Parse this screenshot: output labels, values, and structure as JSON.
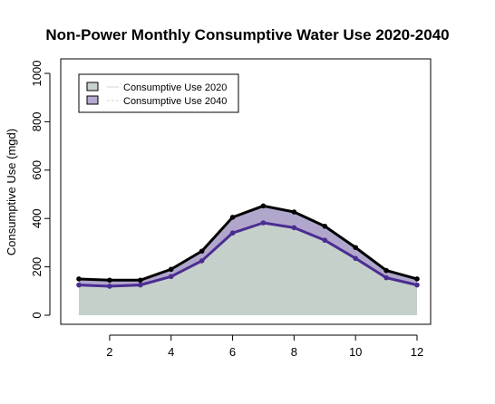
{
  "chart_data": {
    "type": "area",
    "title": "Non-Power Monthly Consumptive Water Use 2020-2040",
    "xlabel": "",
    "ylabel": "Consumptive Use (mgd)",
    "xlim": [
      1,
      12
    ],
    "ylim": [
      0,
      1000
    ],
    "x": [
      1,
      2,
      3,
      4,
      5,
      6,
      7,
      8,
      9,
      10,
      11,
      12
    ],
    "x_ticks": [
      2,
      4,
      6,
      8,
      10,
      12
    ],
    "y_ticks": [
      0,
      200,
      400,
      600,
      800,
      1000
    ],
    "grid": false,
    "legend_position": "top-left",
    "series": [
      {
        "name": "Consumptive Use 2020",
        "values": [
          125,
          120,
          125,
          160,
          225,
          340,
          382,
          362,
          310,
          235,
          155,
          125
        ],
        "fill_color": "#c5d0cb",
        "line_color": "#4b2d91",
        "legend_fill": "#c6d0cc"
      },
      {
        "name": "Consumptive Use 2040",
        "values": [
          150,
          145,
          145,
          190,
          265,
          405,
          452,
          427,
          368,
          280,
          185,
          150
        ],
        "fill_color": "#b1a7cc",
        "line_color": "#000000",
        "legend_fill": "#b4aad0"
      }
    ]
  }
}
